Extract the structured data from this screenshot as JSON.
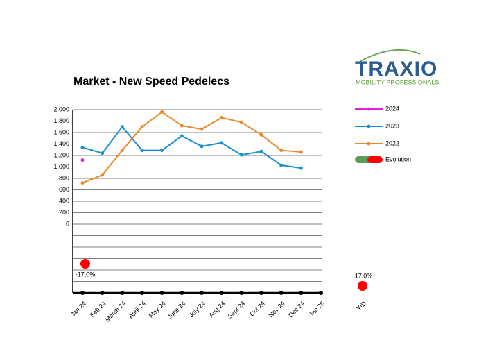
{
  "logo": {
    "name": "TRAXIO",
    "tagline": "MOBILITY PROFESSIONALS"
  },
  "chart_data": {
    "type": "line",
    "title": "Market - New Speed Pedelecs",
    "categories": [
      "Jan 24",
      "Feb 24",
      "March 24",
      "April 24",
      "May 24",
      "June 24",
      "July 24",
      "Aug 24",
      "Sept 24",
      "Oct 24",
      "Nov 24",
      "Dec 24",
      "Jan 25"
    ],
    "series": [
      {
        "name": "2024",
        "color": "#e020e0",
        "values": [
          1120,
          null,
          null,
          null,
          null,
          null,
          null,
          null,
          null,
          null,
          null,
          null,
          null
        ]
      },
      {
        "name": "2023",
        "color": "#1a8fd0",
        "values": [
          1340,
          1240,
          1700,
          1290,
          1290,
          1540,
          1360,
          1420,
          1210,
          1270,
          1030,
          980,
          null
        ]
      },
      {
        "name": "2022",
        "color": "#e8892b",
        "values": [
          720,
          860,
          1290,
          1700,
          1960,
          1720,
          1660,
          1860,
          1780,
          1560,
          1290,
          1260,
          null
        ]
      }
    ],
    "evolution": {
      "name": "Evolution",
      "colors": [
        "#5a9e5a",
        "#ff0000"
      ],
      "values": [
        -17,
        null,
        null,
        null,
        null,
        null,
        null,
        null,
        null,
        null,
        null,
        null,
        null
      ],
      "value_labels": [
        "-17,0%",
        null,
        null,
        null,
        null,
        null,
        null,
        null,
        null,
        null,
        null,
        null,
        null
      ]
    },
    "ytd": {
      "label": "YtD",
      "value": -17,
      "value_label": "-17,0%"
    },
    "ylim": [
      -1200,
      2000
    ],
    "yticks": [
      0,
      200,
      400,
      600,
      800,
      {
        "value": 1000,
        "label": "1.000"
      },
      {
        "value": 1200,
        "label": "1.200"
      },
      {
        "value": 1400,
        "label": "1.400"
      },
      {
        "value": 1600,
        "label": "1.600"
      },
      {
        "value": 1800,
        "label": "1.800"
      },
      {
        "value": 2000,
        "label": "2.000"
      }
    ],
    "gridlines": [
      -200,
      -400,
      -600,
      -800,
      -1000
    ],
    "grid": true
  }
}
